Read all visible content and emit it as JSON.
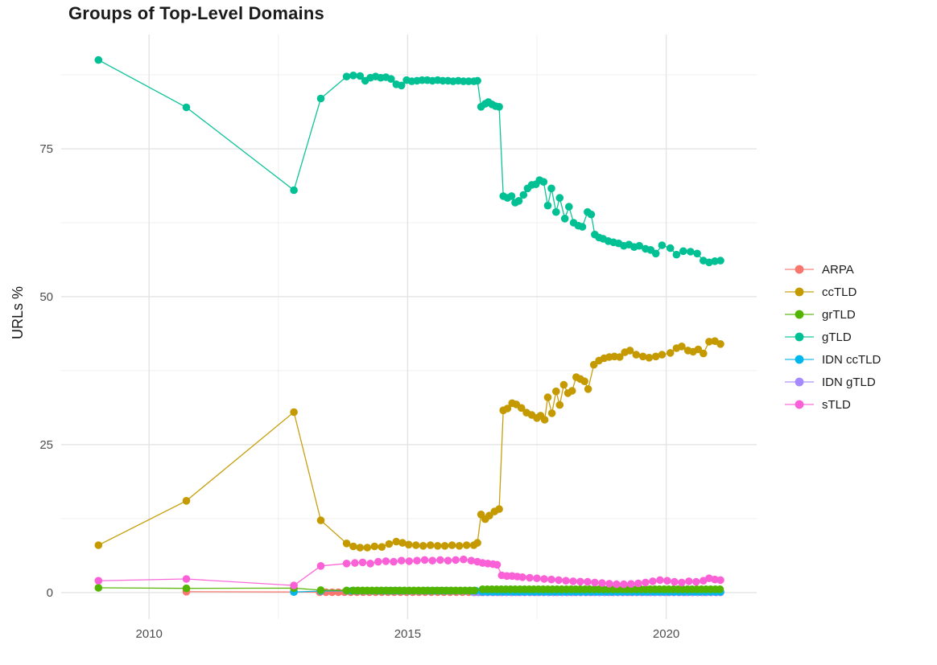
{
  "chart_data": {
    "type": "scatter",
    "title": "Groups of Top-Level Domains",
    "ylabel": "URLs %",
    "xlabel": "",
    "legend_position": "right",
    "grid": {
      "major_color": "#e3e3e3",
      "minor_color": "#f1f1f1"
    },
    "text_colors": {
      "title": "#1b1b1b",
      "axis_ticks": "#4d4d4d",
      "legend": "#1b1b1b"
    },
    "x_domain": [
      2008.3,
      2021.75
    ],
    "y_domain": [
      -4.5,
      94.3
    ],
    "x_ticks_major": [
      {
        "v": 2010,
        "label": "2010"
      },
      {
        "v": 2015,
        "label": "2015"
      },
      {
        "v": 2020,
        "label": "2020"
      }
    ],
    "x_ticks_minor": [
      2012.5,
      2017.5
    ],
    "y_ticks_major": [
      {
        "v": 0,
        "label": "0"
      },
      {
        "v": 25,
        "label": "25"
      },
      {
        "v": 50,
        "label": "50"
      },
      {
        "v": 75,
        "label": "75"
      }
    ],
    "y_ticks_minor": [
      12.5,
      37.5,
      62.5,
      87.5
    ],
    "draw_order": [
      "ARPA",
      "IDN gTLD",
      "IDN ccTLD",
      "grTLD",
      "ccTLD",
      "gTLD",
      "sTLD"
    ],
    "series": [
      {
        "name": "ARPA",
        "color": "#F8766D",
        "points": [
          [
            2010.72,
            0.15
          ],
          [
            2012.8,
            0.1
          ]
        ],
        "runs": [
          {
            "from": 2013.3,
            "to": 2021.05,
            "step": 0.12,
            "value": 0.05
          }
        ]
      },
      {
        "name": "ccTLD",
        "color": "#C49A00",
        "points": [
          [
            2009.02,
            8
          ],
          [
            2010.72,
            15.5
          ],
          [
            2012.8,
            30.5
          ],
          [
            2013.32,
            12.2
          ],
          [
            2013.82,
            8.3
          ],
          [
            2013.95,
            7.8
          ],
          [
            2014.08,
            7.6
          ],
          [
            2014.22,
            7.6
          ],
          [
            2014.36,
            7.8
          ],
          [
            2014.5,
            7.7
          ],
          [
            2014.64,
            8.2
          ],
          [
            2014.78,
            8.6
          ],
          [
            2014.9,
            8.4
          ],
          [
            2015.02,
            8.1
          ],
          [
            2015.16,
            8
          ],
          [
            2015.3,
            7.9
          ],
          [
            2015.44,
            8
          ],
          [
            2015.58,
            7.9
          ],
          [
            2015.72,
            7.9
          ],
          [
            2015.86,
            8
          ],
          [
            2016,
            7.9
          ],
          [
            2016.14,
            8
          ],
          [
            2016.28,
            8
          ],
          [
            2016.35,
            8.4
          ],
          [
            2016.42,
            13.2
          ],
          [
            2016.5,
            12.4
          ],
          [
            2016.58,
            13
          ],
          [
            2016.68,
            13.7
          ],
          [
            2016.77,
            14.1
          ],
          [
            2016.85,
            30.8
          ],
          [
            2016.93,
            31.1
          ],
          [
            2017.02,
            32
          ],
          [
            2017.1,
            31.8
          ],
          [
            2017.2,
            31.2
          ],
          [
            2017.3,
            30.4
          ],
          [
            2017.4,
            30
          ],
          [
            2017.5,
            29.5
          ],
          [
            2017.57,
            29.9
          ],
          [
            2017.65,
            29.2
          ],
          [
            2017.71,
            33
          ],
          [
            2017.79,
            30.3
          ],
          [
            2017.87,
            34
          ],
          [
            2017.94,
            31.7
          ],
          [
            2018.02,
            35.1
          ],
          [
            2018.1,
            33.7
          ],
          [
            2018.18,
            34.1
          ],
          [
            2018.26,
            36.4
          ],
          [
            2018.34,
            36.1
          ],
          [
            2018.42,
            35.7
          ],
          [
            2018.49,
            34.4
          ],
          [
            2018.6,
            38.5
          ],
          [
            2018.7,
            39.2
          ],
          [
            2018.8,
            39.6
          ],
          [
            2018.9,
            39.8
          ],
          [
            2019,
            39.9
          ],
          [
            2019.1,
            39.8
          ],
          [
            2019.2,
            40.6
          ],
          [
            2019.3,
            40.9
          ],
          [
            2019.42,
            40.2
          ],
          [
            2019.55,
            39.9
          ],
          [
            2019.67,
            39.7
          ],
          [
            2019.8,
            39.9
          ],
          [
            2019.92,
            40.2
          ],
          [
            2020.08,
            40.5
          ],
          [
            2020.2,
            41.3
          ],
          [
            2020.3,
            41.6
          ],
          [
            2020.42,
            40.9
          ],
          [
            2020.52,
            40.7
          ],
          [
            2020.62,
            41.1
          ],
          [
            2020.72,
            40.4
          ],
          [
            2020.83,
            42.4
          ],
          [
            2020.94,
            42.5
          ],
          [
            2021.05,
            42
          ]
        ],
        "runs": []
      },
      {
        "name": "grTLD",
        "color": "#53B400",
        "points": [
          [
            2009.02,
            0.8
          ],
          [
            2010.72,
            0.7
          ],
          [
            2012.8,
            0.75
          ],
          [
            2013.32,
            0.4
          ],
          [
            2013.82,
            0.35
          ]
        ],
        "runs": [
          {
            "from": 2013.95,
            "to": 2016.35,
            "step": 0.09,
            "value": 0.35
          },
          {
            "from": 2016.45,
            "to": 2021.05,
            "step": 0.09,
            "value": 0.55
          }
        ]
      },
      {
        "name": "gTLD",
        "color": "#00C094",
        "points": [
          [
            2009.02,
            90
          ],
          [
            2010.72,
            82
          ],
          [
            2012.8,
            68
          ],
          [
            2013.32,
            83.5
          ],
          [
            2013.82,
            87.2
          ],
          [
            2013.95,
            87.4
          ],
          [
            2014.08,
            87.3
          ],
          [
            2014.18,
            86.5
          ],
          [
            2014.28,
            87
          ],
          [
            2014.38,
            87.2
          ],
          [
            2014.48,
            87
          ],
          [
            2014.58,
            87.1
          ],
          [
            2014.68,
            86.8
          ],
          [
            2014.78,
            85.9
          ],
          [
            2014.88,
            85.7
          ],
          [
            2014.98,
            86.6
          ],
          [
            2015.08,
            86.4
          ],
          [
            2015.18,
            86.5
          ],
          [
            2015.28,
            86.6
          ],
          [
            2015.38,
            86.6
          ],
          [
            2015.48,
            86.5
          ],
          [
            2015.58,
            86.6
          ],
          [
            2015.68,
            86.5
          ],
          [
            2015.78,
            86.5
          ],
          [
            2015.88,
            86.4
          ],
          [
            2015.98,
            86.5
          ],
          [
            2016.08,
            86.4
          ],
          [
            2016.18,
            86.4
          ],
          [
            2016.28,
            86.4
          ],
          [
            2016.35,
            86.5
          ],
          [
            2016.42,
            82.1
          ],
          [
            2016.5,
            82.6
          ],
          [
            2016.56,
            82.9
          ],
          [
            2016.63,
            82.5
          ],
          [
            2016.7,
            82.2
          ],
          [
            2016.77,
            82.1
          ],
          [
            2016.85,
            67
          ],
          [
            2016.93,
            66.7
          ],
          [
            2017.01,
            67
          ],
          [
            2017.08,
            65.9
          ],
          [
            2017.15,
            66.2
          ],
          [
            2017.24,
            67.2
          ],
          [
            2017.32,
            68.3
          ],
          [
            2017.4,
            68.9
          ],
          [
            2017.48,
            69
          ],
          [
            2017.55,
            69.7
          ],
          [
            2017.63,
            69.4
          ],
          [
            2017.71,
            65.4
          ],
          [
            2017.78,
            68.3
          ],
          [
            2017.87,
            64.3
          ],
          [
            2017.94,
            66.7
          ],
          [
            2018.04,
            63.2
          ],
          [
            2018.12,
            65.2
          ],
          [
            2018.21,
            62.5
          ],
          [
            2018.3,
            62
          ],
          [
            2018.38,
            61.8
          ],
          [
            2018.48,
            64.3
          ],
          [
            2018.55,
            63.9
          ],
          [
            2018.62,
            60.5
          ],
          [
            2018.7,
            60
          ],
          [
            2018.78,
            59.8
          ],
          [
            2018.88,
            59.4
          ],
          [
            2018.98,
            59.2
          ],
          [
            2019.08,
            59
          ],
          [
            2019.18,
            58.6
          ],
          [
            2019.28,
            58.8
          ],
          [
            2019.38,
            58.4
          ],
          [
            2019.48,
            58.6
          ],
          [
            2019.6,
            58.1
          ],
          [
            2019.7,
            57.9
          ],
          [
            2019.8,
            57.3
          ],
          [
            2019.92,
            58.7
          ],
          [
            2020.08,
            58.2
          ],
          [
            2020.2,
            57.1
          ],
          [
            2020.33,
            57.7
          ],
          [
            2020.47,
            57.6
          ],
          [
            2020.6,
            57.3
          ],
          [
            2020.72,
            56.1
          ],
          [
            2020.83,
            55.8
          ],
          [
            2020.94,
            56
          ],
          [
            2021.05,
            56.1
          ]
        ],
        "runs": []
      },
      {
        "name": "IDN ccTLD",
        "color": "#00B6EB",
        "points": [
          [
            2012.8,
            0.1
          ],
          [
            2013.32,
            0.25
          ]
        ],
        "runs": [
          {
            "from": 2013.82,
            "to": 2016.35,
            "step": 0.1,
            "value": 0.3
          },
          {
            "from": 2016.45,
            "to": 2021.05,
            "step": 0.1,
            "value": 0.12
          }
        ]
      },
      {
        "name": "IDN gTLD",
        "color": "#A58AFF",
        "points": [],
        "runs": [
          {
            "from": 2016.28,
            "to": 2021.05,
            "step": 0.09,
            "value": 0.02
          }
        ]
      },
      {
        "name": "sTLD",
        "color": "#FB61D7",
        "points": [
          [
            2009.02,
            2
          ],
          [
            2010.72,
            2.3
          ],
          [
            2012.8,
            1.2
          ],
          [
            2013.32,
            4.5
          ],
          [
            2013.82,
            4.9
          ],
          [
            2013.98,
            5
          ],
          [
            2014.13,
            5.1
          ],
          [
            2014.28,
            4.9
          ],
          [
            2014.43,
            5.2
          ],
          [
            2014.58,
            5.3
          ],
          [
            2014.73,
            5.2
          ],
          [
            2014.88,
            5.4
          ],
          [
            2015.03,
            5.3
          ],
          [
            2015.18,
            5.4
          ],
          [
            2015.33,
            5.5
          ],
          [
            2015.48,
            5.4
          ],
          [
            2015.63,
            5.5
          ],
          [
            2015.78,
            5.4
          ],
          [
            2015.93,
            5.5
          ],
          [
            2016.08,
            5.6
          ],
          [
            2016.23,
            5.4
          ],
          [
            2016.35,
            5.2
          ],
          [
            2016.45,
            5
          ],
          [
            2016.55,
            4.9
          ],
          [
            2016.65,
            4.8
          ],
          [
            2016.73,
            4.7
          ],
          [
            2016.82,
            2.9
          ],
          [
            2016.92,
            2.8
          ],
          [
            2017.02,
            2.8
          ],
          [
            2017.12,
            2.7
          ],
          [
            2017.22,
            2.6
          ],
          [
            2017.36,
            2.5
          ],
          [
            2017.5,
            2.4
          ],
          [
            2017.64,
            2.3
          ],
          [
            2017.78,
            2.2
          ],
          [
            2017.92,
            2.1
          ],
          [
            2018.06,
            2
          ],
          [
            2018.2,
            1.9
          ],
          [
            2018.34,
            1.85
          ],
          [
            2018.48,
            1.8
          ],
          [
            2018.62,
            1.7
          ],
          [
            2018.76,
            1.6
          ],
          [
            2018.9,
            1.5
          ],
          [
            2019.04,
            1.4
          ],
          [
            2019.18,
            1.4
          ],
          [
            2019.32,
            1.45
          ],
          [
            2019.46,
            1.55
          ],
          [
            2019.6,
            1.7
          ],
          [
            2019.74,
            1.9
          ],
          [
            2019.88,
            2.1
          ],
          [
            2020.02,
            2
          ],
          [
            2020.16,
            1.8
          ],
          [
            2020.3,
            1.7
          ],
          [
            2020.44,
            1.9
          ],
          [
            2020.58,
            1.8
          ],
          [
            2020.72,
            2
          ],
          [
            2020.83,
            2.4
          ],
          [
            2020.94,
            2.2
          ],
          [
            2021.05,
            2.1
          ]
        ],
        "runs": []
      }
    ]
  }
}
